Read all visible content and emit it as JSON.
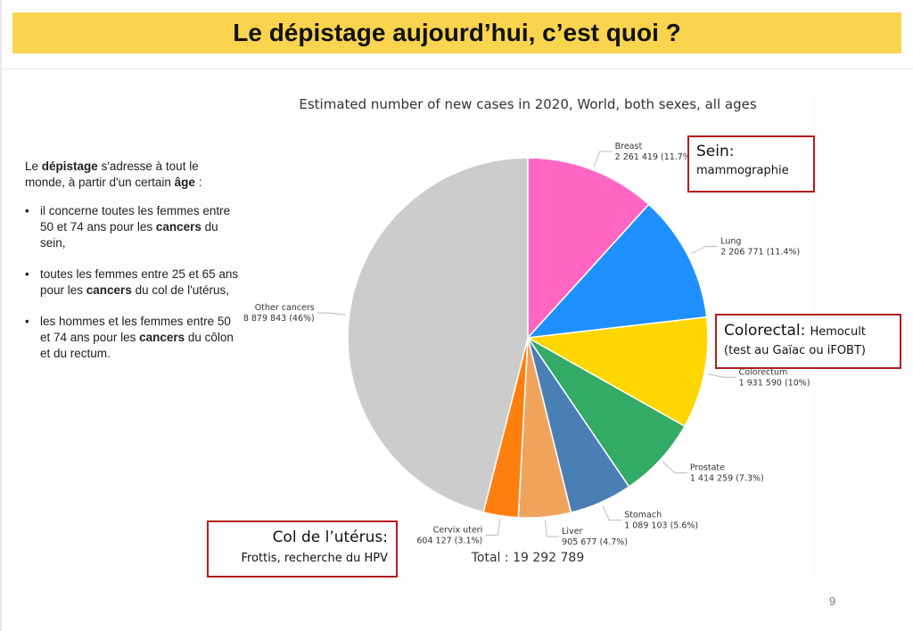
{
  "title": "Le dépistage aujourd’hui, c’est quoi ?",
  "left_text": {
    "intro_1": "Le ",
    "intro_b1": "dépistage",
    "intro_2": " s'adresse à tout le monde, à partir d'un certain ",
    "intro_b2": "âge",
    "intro_3": " :",
    "bullets": [
      {
        "a": "il concerne toutes les femmes entre 50 et 74 ans pour les ",
        "b": "cancers",
        "c": " du sein,"
      },
      {
        "a": "toutes les femmes entre 25 et 65 ans pour les ",
        "b": "cancers",
        "c": " du col de l'utérus,"
      },
      {
        "a": "les hommes et les femmes entre 50 et 74 ans pour les ",
        "b": "cancers",
        "c": " du côlon et du rectum."
      }
    ],
    "bullet_symbol": "•"
  },
  "callouts": {
    "sein_title": "Sein:",
    "sein_text": "mammographie",
    "colorectal_title": "Colorectal:",
    "colorectal_text1": "Hemocult",
    "colorectal_text2": "(test au Gaïac ou iFOBT)",
    "col_title": "Col de l’utérus:",
    "col_text": "Frottis, recherche du HPV"
  },
  "page_number": "9",
  "chart_data": {
    "type": "pie",
    "title": "Estimated number of new cases in 2020, World, both sexes, all ages",
    "total_label": "Total : 19 292 789",
    "slices": [
      {
        "name": "Breast",
        "value": 2261419,
        "label": "2 261 419 (11.7%)",
        "pct": 11.7,
        "color": "#ff66c4"
      },
      {
        "name": "Lung",
        "value": 2206771,
        "label": "2 206 771 (11.4%)",
        "pct": 11.4,
        "color": "#1e90ff"
      },
      {
        "name": "Colorectum",
        "value": 1931590,
        "label": "1 931 590 (10%)",
        "pct": 10.0,
        "color": "#ffd700"
      },
      {
        "name": "Prostate",
        "value": 1414259,
        "label": "1 414 259 (7.3%)",
        "pct": 7.3,
        "color": "#33aa66"
      },
      {
        "name": "Stomach",
        "value": 1089103,
        "label": "1 089 103 (5.6%)",
        "pct": 5.6,
        "color": "#4a7fb5"
      },
      {
        "name": "Liver",
        "value": 905677,
        "label": "905 677 (4.7%)",
        "pct": 4.7,
        "color": "#f0a35a"
      },
      {
        "name": "Cervix uteri",
        "value": 604127,
        "label": "604 127 (3.1%)",
        "pct": 3.1,
        "color": "#ff7f0e"
      },
      {
        "name": "Other cancers",
        "value": 8879843,
        "label": "8 879 843 (46%)",
        "pct": 46.0,
        "color": "#cccccc"
      }
    ]
  }
}
